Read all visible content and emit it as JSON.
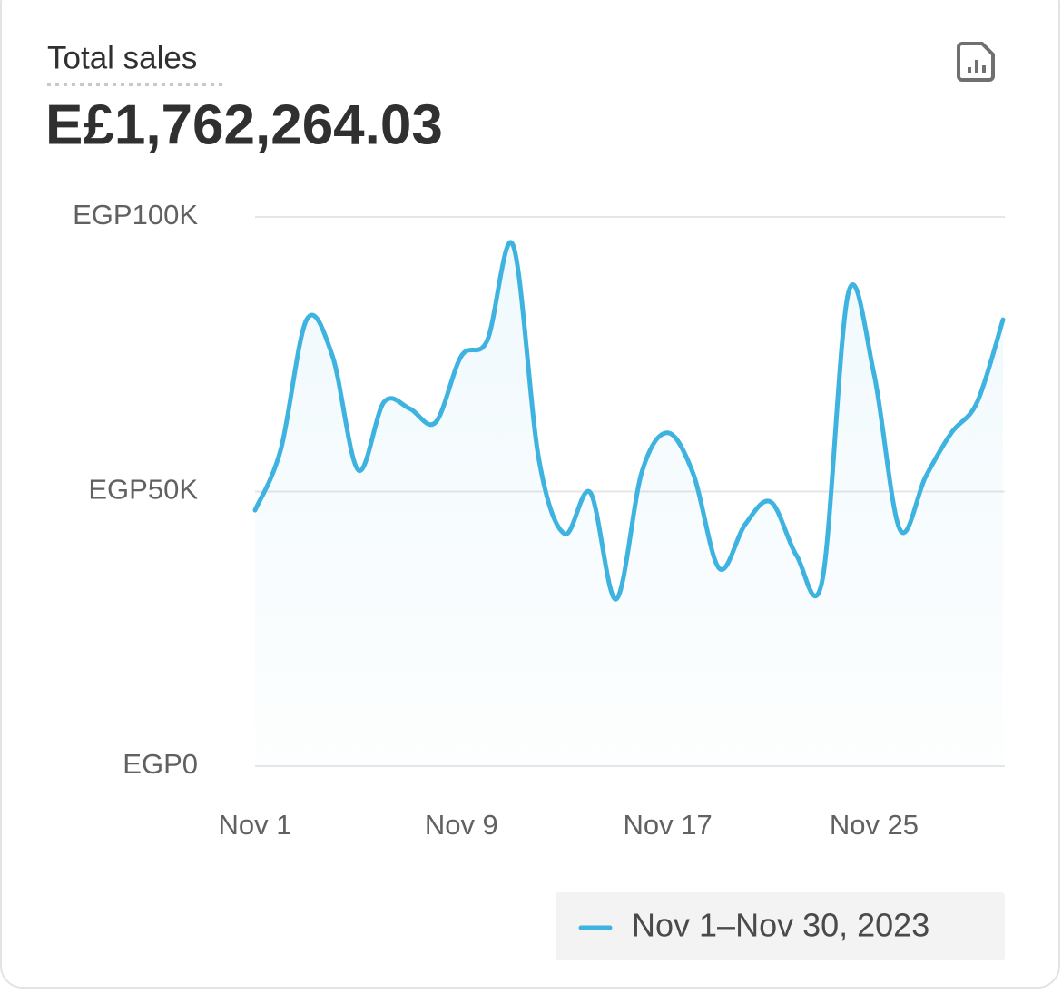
{
  "chart_data": {
    "type": "line",
    "title": "Total sales",
    "total": "E£1,762,264.03",
    "categories": [
      "Nov 1",
      null,
      null,
      null,
      null,
      null,
      null,
      null,
      "Nov 9",
      null,
      null,
      null,
      null,
      null,
      null,
      null,
      "Nov 17",
      null,
      null,
      null,
      null,
      null,
      null,
      null,
      "Nov 25",
      null,
      null,
      null,
      null,
      null
    ],
    "series": [
      {
        "name": "Nov 1–Nov 30, 2023",
        "color": "#3fb3e0",
        "values": [
          46600,
          57700,
          81300,
          74700,
          53900,
          66300,
          65100,
          62600,
          74700,
          77500,
          94900,
          56000,
          42300,
          49800,
          30400,
          53600,
          60700,
          53100,
          36000,
          44000,
          48100,
          38300,
          34000,
          86100,
          71400,
          43100,
          52700,
          60700,
          66300,
          81300
        ]
      }
    ],
    "ylim": [
      0,
      100000
    ],
    "yticks": [
      {
        "value": 0,
        "label": "EGP0"
      },
      {
        "value": 50000,
        "label": "EGP50K"
      },
      {
        "value": 100000,
        "label": "EGP100K"
      }
    ],
    "grid": true
  }
}
